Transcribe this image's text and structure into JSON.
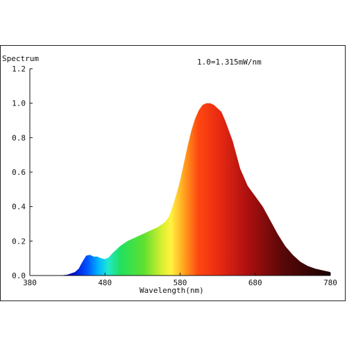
{
  "chart_data": {
    "type": "area",
    "ylabel": "Spectrum",
    "xlabel": "Wavelength(nm)",
    "annotation": "1.0=1.315mW/nm",
    "xlim": [
      380,
      780
    ],
    "ylim": [
      0,
      1.2
    ],
    "x_ticks": [
      380,
      480,
      580,
      680,
      780
    ],
    "x_tick_labels": [
      "380",
      "480",
      "580",
      "680",
      "780"
    ],
    "y_ticks": [
      0,
      0.2,
      0.4,
      0.6,
      0.8,
      1.0,
      1.2
    ],
    "y_tick_labels": [
      "0.0",
      "0.2",
      "0.4",
      "0.6",
      "0.8",
      "1.0",
      "1.2"
    ],
    "fill": "visible-spectrum gradient (blue → cyan → green → yellow → red → dark brown)",
    "x": [
      380,
      400,
      420,
      430,
      440,
      445,
      450,
      455,
      460,
      465,
      470,
      475,
      480,
      485,
      490,
      495,
      500,
      510,
      520,
      530,
      540,
      550,
      560,
      565,
      570,
      575,
      580,
      585,
      590,
      595,
      600,
      605,
      610,
      615,
      620,
      625,
      630,
      635,
      640,
      650,
      660,
      670,
      680,
      690,
      700,
      710,
      720,
      730,
      740,
      750,
      760,
      770,
      780
    ],
    "y": [
      0.0,
      0.0,
      0.0,
      0.005,
      0.02,
      0.04,
      0.08,
      0.115,
      0.12,
      0.11,
      0.11,
      0.1,
      0.095,
      0.105,
      0.13,
      0.15,
      0.17,
      0.2,
      0.22,
      0.24,
      0.26,
      0.28,
      0.31,
      0.34,
      0.4,
      0.47,
      0.55,
      0.65,
      0.75,
      0.84,
      0.91,
      0.96,
      0.99,
      1.0,
      1.0,
      0.99,
      0.97,
      0.95,
      0.9,
      0.78,
      0.62,
      0.52,
      0.46,
      0.4,
      0.32,
      0.24,
      0.17,
      0.12,
      0.08,
      0.055,
      0.04,
      0.03,
      0.02
    ]
  }
}
